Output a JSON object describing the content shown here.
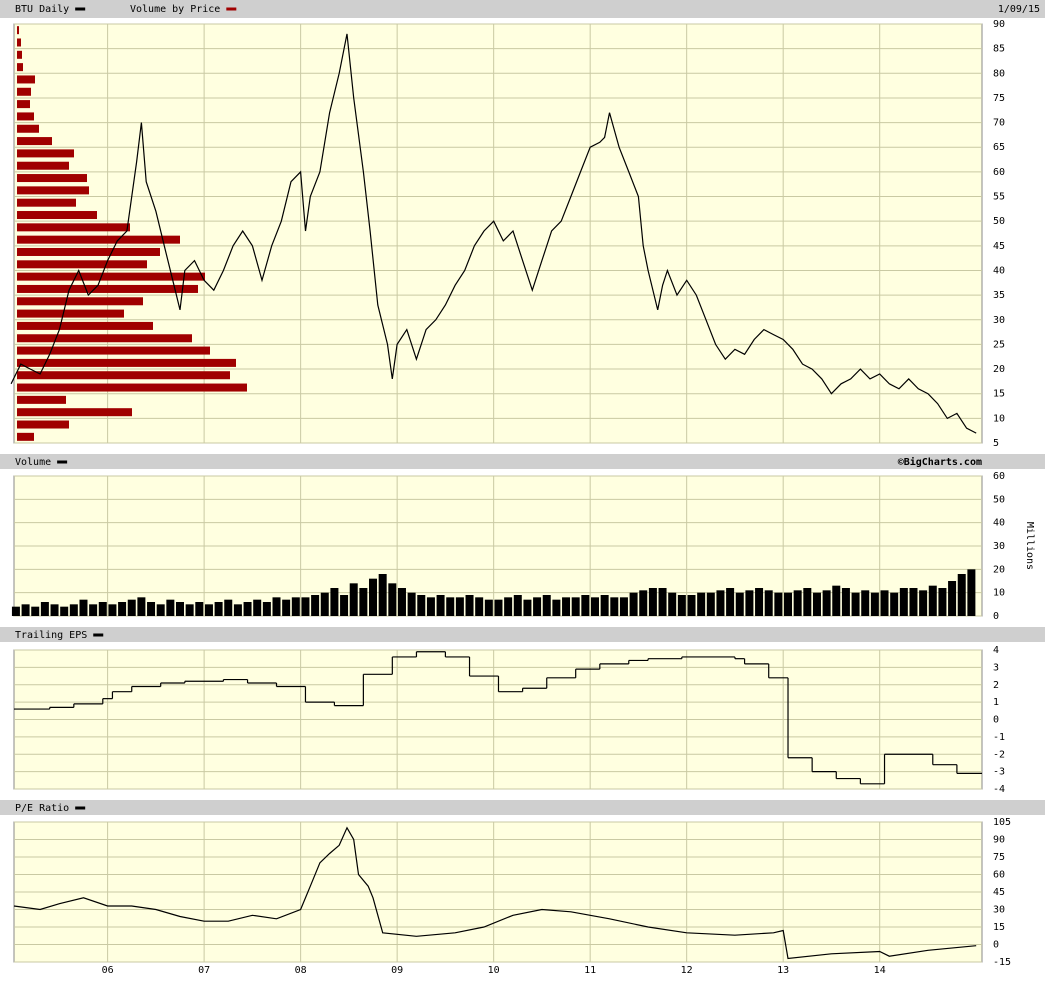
{
  "chart_data": [
    {
      "type": "line",
      "date": "1/09/15",
      "xlim": [
        5.03,
        15.06
      ],
      "ylim": [
        5,
        90
      ],
      "yticks": [
        5,
        10,
        15,
        20,
        25,
        30,
        35,
        40,
        45,
        50,
        55,
        60,
        65,
        70,
        75,
        80,
        85,
        90
      ],
      "grid": true,
      "x": [
        5.0,
        5.1,
        5.2,
        5.3,
        5.4,
        5.5,
        5.6,
        5.7,
        5.8,
        5.9,
        6.0,
        6.1,
        6.2,
        6.3,
        6.35,
        6.4,
        6.5,
        6.6,
        6.7,
        6.75,
        6.8,
        6.9,
        7.0,
        7.1,
        7.2,
        7.3,
        7.4,
        7.5,
        7.6,
        7.7,
        7.8,
        7.9,
        8.0,
        8.05,
        8.1,
        8.2,
        8.3,
        8.4,
        8.48,
        8.55,
        8.65,
        8.72,
        8.8,
        8.9,
        8.95,
        9.0,
        9.1,
        9.2,
        9.3,
        9.4,
        9.5,
        9.6,
        9.7,
        9.8,
        9.9,
        10.0,
        10.1,
        10.2,
        10.3,
        10.4,
        10.5,
        10.6,
        10.7,
        10.8,
        10.9,
        11.0,
        11.1,
        11.15,
        11.2,
        11.3,
        11.4,
        11.5,
        11.55,
        11.6,
        11.7,
        11.75,
        11.8,
        11.9,
        12.0,
        12.1,
        12.2,
        12.3,
        12.4,
        12.5,
        12.6,
        12.7,
        12.8,
        12.9,
        13.0,
        13.1,
        13.2,
        13.3,
        13.4,
        13.5,
        13.6,
        13.7,
        13.8,
        13.9,
        14.0,
        14.1,
        14.2,
        14.3,
        14.4,
        14.5,
        14.6,
        14.7,
        14.8,
        14.9,
        15.0
      ],
      "series": [
        {
          "name": "BTU Daily",
          "color": "#000000",
          "values": [
            17,
            21,
            20,
            19,
            23,
            28,
            36,
            40,
            35,
            37,
            42,
            46,
            48,
            62,
            70,
            58,
            52,
            44,
            36,
            32,
            40,
            42,
            38,
            36,
            40,
            45,
            48,
            45,
            38,
            45,
            50,
            58,
            60,
            48,
            55,
            60,
            72,
            80,
            88,
            75,
            60,
            48,
            33,
            25,
            18,
            25,
            28,
            22,
            28,
            30,
            33,
            37,
            40,
            45,
            48,
            50,
            46,
            48,
            42,
            36,
            42,
            48,
            50,
            55,
            60,
            65,
            66,
            67,
            72,
            65,
            60,
            55,
            45,
            40,
            32,
            37,
            40,
            35,
            38,
            35,
            30,
            25,
            22,
            24,
            23,
            26,
            28,
            27,
            26,
            24,
            21,
            20,
            18,
            15,
            17,
            18,
            20,
            18,
            19,
            17,
            16,
            18,
            16,
            15,
            13,
            10,
            11,
            8,
            7
          ]
        }
      ],
      "volume_by_price": {
        "name": "Volume by Price",
        "color": "#a00000",
        "levels": [
          88.75,
          86.25,
          83.75,
          81.25,
          78.75,
          76.25,
          73.75,
          71.25,
          68.75,
          66.25,
          63.75,
          61.25,
          58.75,
          56.25,
          53.75,
          51.25,
          48.75,
          46.25,
          43.75,
          41.25,
          38.75,
          36.25,
          33.75,
          31.25,
          28.75,
          26.25,
          23.75,
          21.25,
          18.75,
          16.25,
          13.75,
          11.25,
          8.75,
          6.25
        ],
        "values": [
          2,
          4,
          5,
          6,
          18,
          14,
          13,
          17,
          22,
          35,
          57,
          52,
          70,
          72,
          59,
          80,
          113,
          163,
          143,
          130,
          188,
          181,
          126,
          107,
          136,
          175,
          193,
          219,
          213,
          230,
          49,
          115,
          52,
          17
        ]
      }
    },
    {
      "type": "bar",
      "credit": "©BigCharts.com",
      "ylabel": "Millions",
      "xlim": [
        5.03,
        15.06
      ],
      "ylim": [
        0,
        60
      ],
      "yticks": [
        0,
        10,
        20,
        30,
        40,
        50,
        60
      ],
      "grid": true,
      "x": [
        5.05,
        5.15,
        5.25,
        5.35,
        5.45,
        5.55,
        5.65,
        5.75,
        5.85,
        5.95,
        6.05,
        6.15,
        6.25,
        6.35,
        6.45,
        6.55,
        6.65,
        6.75,
        6.85,
        6.95,
        7.05,
        7.15,
        7.25,
        7.35,
        7.45,
        7.55,
        7.65,
        7.75,
        7.85,
        7.95,
        8.05,
        8.15,
        8.25,
        8.35,
        8.45,
        8.55,
        8.65,
        8.75,
        8.85,
        8.95,
        9.05,
        9.15,
        9.25,
        9.35,
        9.45,
        9.55,
        9.65,
        9.75,
        9.85,
        9.95,
        10.05,
        10.15,
        10.25,
        10.35,
        10.45,
        10.55,
        10.65,
        10.75,
        10.85,
        10.95,
        11.05,
        11.15,
        11.25,
        11.35,
        11.45,
        11.55,
        11.65,
        11.75,
        11.85,
        11.95,
        12.05,
        12.15,
        12.25,
        12.35,
        12.45,
        12.55,
        12.65,
        12.75,
        12.85,
        12.95,
        13.05,
        13.15,
        13.25,
        13.35,
        13.45,
        13.55,
        13.65,
        13.75,
        13.85,
        13.95,
        14.05,
        14.15,
        14.25,
        14.35,
        14.45,
        14.55,
        14.65,
        14.75,
        14.85,
        14.95
      ],
      "series": [
        {
          "name": "Volume",
          "color": "#000000",
          "values": [
            4,
            5,
            4,
            6,
            5,
            4,
            5,
            7,
            5,
            6,
            5,
            6,
            7,
            8,
            6,
            5,
            7,
            6,
            5,
            6,
            5,
            6,
            7,
            5,
            6,
            7,
            6,
            8,
            7,
            8,
            8,
            9,
            10,
            12,
            9,
            14,
            12,
            16,
            18,
            14,
            12,
            10,
            9,
            8,
            9,
            8,
            8,
            9,
            8,
            7,
            7,
            8,
            9,
            7,
            8,
            9,
            7,
            8,
            8,
            9,
            8,
            9,
            8,
            8,
            10,
            11,
            12,
            12,
            10,
            9,
            9,
            10,
            10,
            11,
            12,
            10,
            11,
            12,
            11,
            10,
            10,
            11,
            12,
            10,
            11,
            13,
            12,
            10,
            11,
            10,
            11,
            10,
            12,
            12,
            11,
            13,
            12,
            15,
            18,
            20
          ]
        }
      ]
    },
    {
      "type": "step",
      "xlim": [
        5.03,
        15.06
      ],
      "ylim": [
        -4,
        4
      ],
      "yticks": [
        -4,
        -3,
        -2,
        -1,
        0,
        1,
        2,
        3,
        4
      ],
      "grid": true,
      "x": [
        5.03,
        5.4,
        5.65,
        5.95,
        6.05,
        6.25,
        6.55,
        6.8,
        7.2,
        7.45,
        7.75,
        8.05,
        8.35,
        8.65,
        8.95,
        9.2,
        9.5,
        9.75,
        10.05,
        10.3,
        10.55,
        10.85,
        11.1,
        11.4,
        11.6,
        11.95,
        12.5,
        12.6,
        12.85,
        13.05,
        13.3,
        13.55,
        13.8,
        14.05,
        14.55,
        14.8
      ],
      "series": [
        {
          "name": "Trailing EPS",
          "color": "#000000",
          "values": [
            0.6,
            0.7,
            0.9,
            1.2,
            1.6,
            1.9,
            2.1,
            2.2,
            2.3,
            2.1,
            1.9,
            1.0,
            0.8,
            2.6,
            3.6,
            3.9,
            3.6,
            2.5,
            1.6,
            1.8,
            2.4,
            2.9,
            3.2,
            3.4,
            3.5,
            3.6,
            3.5,
            3.2,
            2.4,
            -2.2,
            -3.0,
            -3.4,
            -3.7,
            -2.0,
            -2.6,
            -3.1
          ]
        }
      ]
    },
    {
      "type": "line",
      "xlim": [
        5.03,
        15.06
      ],
      "ylim": [
        -15,
        105
      ],
      "yticks": [
        -15,
        0,
        15,
        30,
        45,
        60,
        75,
        90,
        105
      ],
      "grid": true,
      "xticks": [
        {
          "value": 6,
          "label": "06"
        },
        {
          "value": 7,
          "label": "07"
        },
        {
          "value": 8,
          "label": "08"
        },
        {
          "value": 9,
          "label": "09"
        },
        {
          "value": 10,
          "label": "10"
        },
        {
          "value": 11,
          "label": "11"
        },
        {
          "value": 12,
          "label": "12"
        },
        {
          "value": 13,
          "label": "13"
        },
        {
          "value": 14,
          "label": "14"
        }
      ],
      "x": [
        5.03,
        5.3,
        5.5,
        5.75,
        6.0,
        6.25,
        6.5,
        6.75,
        7.0,
        7.25,
        7.5,
        7.75,
        8.0,
        8.1,
        8.2,
        8.3,
        8.4,
        8.48,
        8.55,
        8.6,
        8.7,
        8.75,
        8.85,
        9.2,
        9.6,
        9.9,
        10.2,
        10.5,
        10.8,
        11.2,
        11.6,
        12.0,
        12.5,
        12.9,
        13.0,
        13.05,
        13.5,
        14.0,
        14.1,
        14.5,
        15.0
      ],
      "series": [
        {
          "name": "P/E Ratio",
          "color": "#000000",
          "values": [
            33,
            30,
            35,
            40,
            33,
            33,
            30,
            24,
            20,
            20,
            25,
            22,
            30,
            50,
            70,
            78,
            85,
            100,
            90,
            60,
            50,
            40,
            10,
            7,
            10,
            15,
            25,
            30,
            28,
            22,
            15,
            10,
            8,
            10,
            12,
            -12,
            -8,
            -6,
            -10,
            -5,
            -1
          ]
        }
      ]
    }
  ]
}
